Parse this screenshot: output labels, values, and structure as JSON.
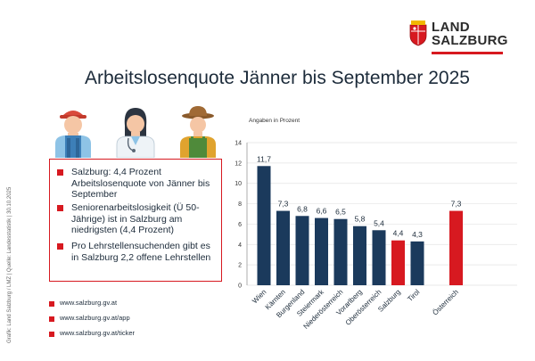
{
  "logo": {
    "line1": "LAND",
    "line2": "SALZBURG",
    "crest_colors": [
      "#d71920",
      "#ffffff",
      "#f2b600"
    ]
  },
  "title": "Arbeitslosenquote Jänner bis September 2025",
  "side_credit": "Grafik: Land Salzburg / LMZ | Quelle: Landesstatistik | 30.10.2025",
  "figures": [
    {
      "icon": "worker-cap-icon"
    },
    {
      "icon": "doctor-icon"
    },
    {
      "icon": "farmer-icon"
    }
  ],
  "info_items": [
    {
      "text": "Salzburg: 4,4 Prozent Arbeitslosenquote von Jänner bis September"
    },
    {
      "text": "Seniorenarbeitslosigkeit (Ü 50-Jährige) ist in Salzburg am niedrigsten (4,4 Prozent)"
    },
    {
      "text": "Pro Lehrstellensuchenden gibt es in Salzburg 2,2 offene Lehrstellen"
    }
  ],
  "links": [
    {
      "text": "www.salzburg.gv.at"
    },
    {
      "text": "www.salzburg.gv.at/app"
    },
    {
      "text": "www.salzburg.gv.at/ticker"
    }
  ],
  "colors": {
    "accent_red": "#d71920",
    "navy": "#1b3a5c",
    "text": "#1c2b3a"
  },
  "chart_data": {
    "type": "bar",
    "subtitle": "Angaben in Prozent",
    "categories": [
      "Wien",
      "Kärnten",
      "Burgenland",
      "Steiermark",
      "Niederösterreich",
      "Vorarlberg",
      "Oberösterreich",
      "Salzburg",
      "Tirol",
      "Österreich"
    ],
    "values": [
      11.7,
      7.3,
      6.8,
      6.6,
      6.5,
      5.8,
      5.4,
      4.4,
      4.3,
      7.3
    ],
    "value_labels": [
      "11,7",
      "7,3",
      "6,8",
      "6,6",
      "6,5",
      "5,8",
      "5,4",
      "4,4",
      "4,3",
      "7,3"
    ],
    "highlight": [
      "Salzburg",
      "Österreich"
    ],
    "bar_color": "#1b3a5c",
    "highlight_color": "#d71920",
    "ylim": [
      0,
      14
    ],
    "yticks": [
      "0",
      "2",
      "4",
      "6",
      "8",
      "10",
      "12",
      "14"
    ],
    "grid": true,
    "xlabel": "",
    "ylabel": ""
  }
}
